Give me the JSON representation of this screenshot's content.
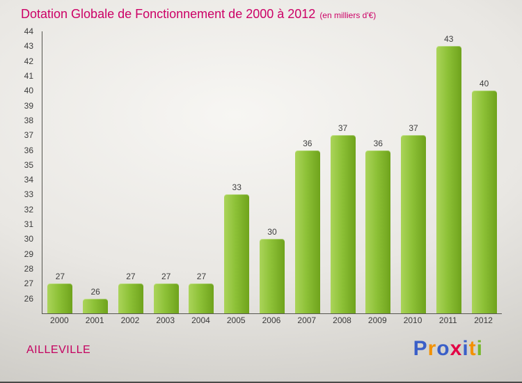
{
  "header": {
    "title": "Dotation Globale de Fonctionnement de 2000 à 2012",
    "subtitle": "(en milliers d'€)"
  },
  "footer": {
    "commune": "AILLEVILLE",
    "logo_letters": [
      {
        "char": "P",
        "color": "#3a5fc8"
      },
      {
        "char": "r",
        "color": "#f29100"
      },
      {
        "char": "o",
        "color": "#3a5fc8"
      },
      {
        "char": "x",
        "color": "#e30045"
      },
      {
        "char": "i",
        "color": "#3a5fc8"
      },
      {
        "char": "t",
        "color": "#f29100"
      },
      {
        "char": "i",
        "color": "#76b82a"
      }
    ]
  },
  "colors": {
    "title": "#cc0066",
    "bar_gradient_start": "#abd45a",
    "bar_gradient_end": "#6fa31c",
    "axis": "#55554f",
    "tick_label": "#3a3a3a"
  },
  "chart_data": {
    "type": "bar",
    "title": "Dotation Globale de Fonctionnement de 2000 à 2012",
    "subtitle": "(en milliers d'€)",
    "categories": [
      "2000",
      "2001",
      "2002",
      "2003",
      "2004",
      "2005",
      "2006",
      "2007",
      "2008",
      "2009",
      "2010",
      "2011",
      "2012"
    ],
    "values": [
      27,
      26,
      27,
      27,
      27,
      33,
      30,
      36,
      37,
      36,
      37,
      43,
      40
    ],
    "xlabel": "",
    "ylabel": "",
    "ylim": [
      25,
      44
    ],
    "ytick_step": 1,
    "grid": false,
    "legend": "none",
    "bar_labels": true
  }
}
